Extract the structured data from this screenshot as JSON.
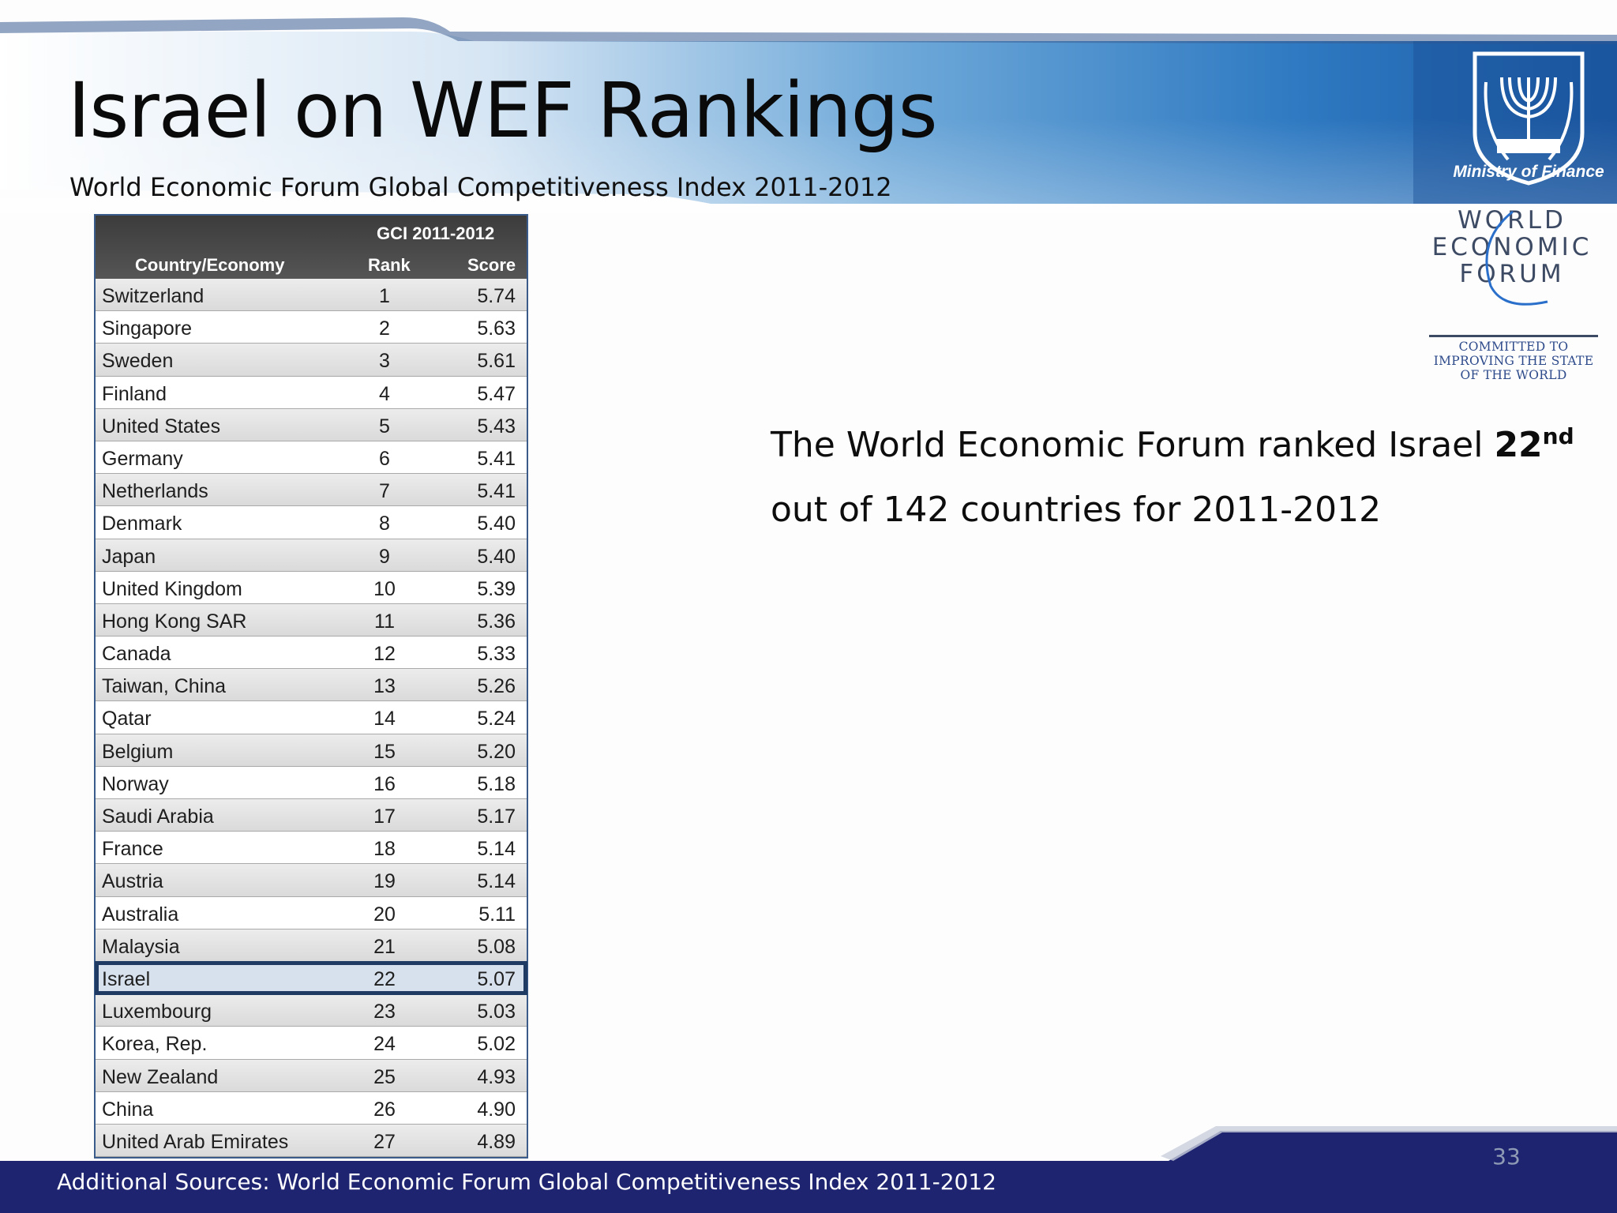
{
  "slide": {
    "title": "Israel on WEF Rankings",
    "subtitle": "World Economic Forum Global Competitiveness Index 2011-2012",
    "page_number": "33"
  },
  "logos": {
    "ministry": {
      "caption": "Ministry of Finance",
      "icon": "menorah-emblem-icon"
    },
    "wef": {
      "lines": [
        "WORLD",
        "ECONOMIC",
        "FORUM"
      ],
      "tagline": [
        "COMMITTED TO",
        "IMPROVING THE STATE",
        "OF THE WORLD"
      ]
    }
  },
  "table": {
    "group_header": "GCI 2011-2012",
    "columns": {
      "country": "Country/Economy",
      "rank": "Rank",
      "score": "Score"
    },
    "rows": [
      {
        "country": "Switzerland",
        "rank": "1",
        "score": "5.74"
      },
      {
        "country": "Singapore",
        "rank": "2",
        "score": "5.63"
      },
      {
        "country": "Sweden",
        "rank": "3",
        "score": "5.61"
      },
      {
        "country": "Finland",
        "rank": "4",
        "score": "5.47"
      },
      {
        "country": "United States",
        "rank": "5",
        "score": "5.43"
      },
      {
        "country": "Germany",
        "rank": "6",
        "score": "5.41"
      },
      {
        "country": "Netherlands",
        "rank": "7",
        "score": "5.41"
      },
      {
        "country": "Denmark",
        "rank": "8",
        "score": "5.40"
      },
      {
        "country": "Japan",
        "rank": "9",
        "score": "5.40"
      },
      {
        "country": "United Kingdom",
        "rank": "10",
        "score": "5.39"
      },
      {
        "country": "Hong Kong SAR",
        "rank": "11",
        "score": "5.36"
      },
      {
        "country": "Canada",
        "rank": "12",
        "score": "5.33"
      },
      {
        "country": "Taiwan, China",
        "rank": "13",
        "score": "5.26"
      },
      {
        "country": "Qatar",
        "rank": "14",
        "score": "5.24"
      },
      {
        "country": "Belgium",
        "rank": "15",
        "score": "5.20"
      },
      {
        "country": "Norway",
        "rank": "16",
        "score": "5.18"
      },
      {
        "country": "Saudi Arabia",
        "rank": "17",
        "score": "5.17"
      },
      {
        "country": "France",
        "rank": "18",
        "score": "5.14"
      },
      {
        "country": "Austria",
        "rank": "19",
        "score": "5.14"
      },
      {
        "country": "Australia",
        "rank": "20",
        "score": "5.11"
      },
      {
        "country": "Malaysia",
        "rank": "21",
        "score": "5.08"
      },
      {
        "country": "Israel",
        "rank": "22",
        "score": "5.07",
        "highlighted": true
      },
      {
        "country": "Luxembourg",
        "rank": "23",
        "score": "5.03"
      },
      {
        "country": "Korea, Rep.",
        "rank": "24",
        "score": "5.02"
      },
      {
        "country": "New Zealand",
        "rank": "25",
        "score": "4.93"
      },
      {
        "country": "China",
        "rank": "26",
        "score": "4.90"
      },
      {
        "country": "United Arab Emirates",
        "rank": "27",
        "score": "4.89"
      }
    ]
  },
  "statement": {
    "line1_prefix": "The World Economic Forum ranked Israel ",
    "rank": "22",
    "rank_suffix": "nd",
    "line2": "out of 142 countries for 2011-2012"
  },
  "footer": {
    "source": "Additional Sources: World Economic Forum Global Competitiveness Index 2011-2012"
  },
  "colors": {
    "header_blue": "#1d5fa8",
    "footer_navy": "#1e2470",
    "highlight_border": "#1f3b63",
    "table_header": "#444444"
  }
}
